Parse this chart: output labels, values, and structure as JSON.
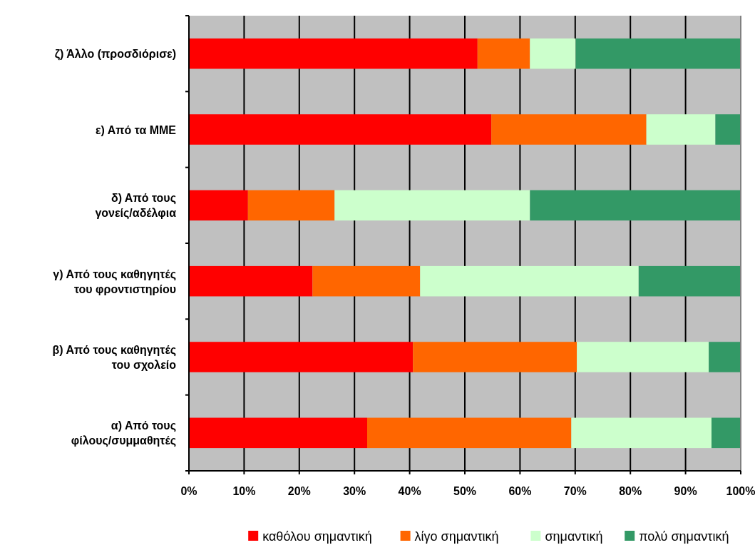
{
  "chart_data": {
    "type": "bar",
    "orientation": "horizontal",
    "stacked": true,
    "categories": [
      "ζ) Άλλο (προσδιόρισε)",
      "ε) Από τα ΜΜΕ",
      "δ) Από τους\nγονείς/αδέλφια",
      "γ) Από τους καθηγητές\nτου φροντιστηρίου",
      "β) Από τους καθηγητές\nτου σχολείο",
      "α) Από τους\nφίλους/συμμαθητές"
    ],
    "series": [
      {
        "name": "καθόλου σημαντική",
        "color": "#ff0000",
        "values": [
          52.3,
          54.8,
          10.7,
          22.4,
          40.6,
          32.3
        ]
      },
      {
        "name": "λίγο σημαντική",
        "color": "#ff6600",
        "values": [
          9.5,
          28.1,
          15.7,
          19.5,
          29.7,
          37.0
        ]
      },
      {
        "name": "σημαντική",
        "color": "#ccffcc",
        "values": [
          8.3,
          12.5,
          35.4,
          39.6,
          23.9,
          25.4
        ]
      },
      {
        "name": "πολύ σημαντική",
        "color": "#339966",
        "values": [
          29.9,
          4.6,
          38.2,
          18.5,
          5.8,
          5.3
        ]
      }
    ],
    "xlim": [
      0,
      100
    ],
    "xticks": [
      {
        "value": 0,
        "label": "0%"
      },
      {
        "value": 10,
        "label": "10%"
      },
      {
        "value": 20,
        "label": "20%"
      },
      {
        "value": 30,
        "label": "30%"
      },
      {
        "value": 40,
        "label": "40%"
      },
      {
        "value": 50,
        "label": "50%"
      },
      {
        "value": 60,
        "label": "60%"
      },
      {
        "value": 70,
        "label": "70%"
      },
      {
        "value": 80,
        "label": "80%"
      },
      {
        "value": 90,
        "label": "90%"
      },
      {
        "value": 100,
        "label": "100%"
      }
    ],
    "grid": "x",
    "legend": "bottom"
  }
}
